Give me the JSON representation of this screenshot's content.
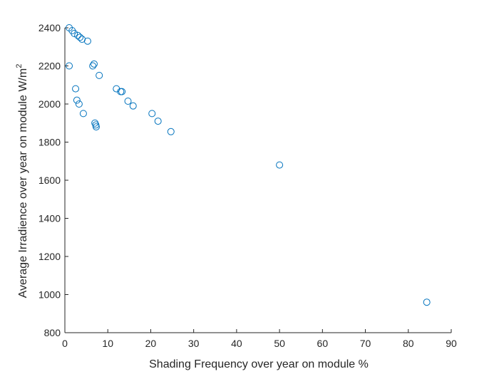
{
  "chart_data": {
    "type": "scatter",
    "title": "",
    "xlabel": "Shading Frequency over year on module %",
    "ylabel": "Average Irradience over year on module W/m",
    "ylabel_superscript": "2",
    "xlim": [
      0,
      90
    ],
    "ylim": [
      800,
      2400
    ],
    "xticks": [
      0,
      10,
      20,
      30,
      40,
      50,
      60,
      70,
      80,
      90
    ],
    "yticks": [
      800,
      1000,
      1200,
      1400,
      1600,
      1800,
      2000,
      2200,
      2400
    ],
    "grid": false,
    "marker": "circle-open",
    "colors": {
      "marker": "#0072BD",
      "axis": "#262626"
    },
    "series": [
      {
        "x": [
          1.0,
          1.7,
          2.2,
          3.0,
          3.5,
          4.0,
          5.3,
          6.5,
          6.8,
          8.0,
          1.0,
          2.5,
          2.8,
          3.3,
          4.3,
          7.0,
          7.2,
          7.3,
          12.0,
          13.0,
          13.3,
          14.7,
          15.9,
          20.3,
          21.7,
          24.7,
          50.0,
          84.3
        ],
        "y": [
          2400,
          2385,
          2370,
          2360,
          2350,
          2340,
          2330,
          2200,
          2210,
          2150,
          2200,
          2080,
          2020,
          2000,
          1950,
          1900,
          1890,
          1880,
          2080,
          2065,
          2065,
          2015,
          1990,
          1950,
          1910,
          1855,
          1680,
          960
        ]
      }
    ]
  }
}
